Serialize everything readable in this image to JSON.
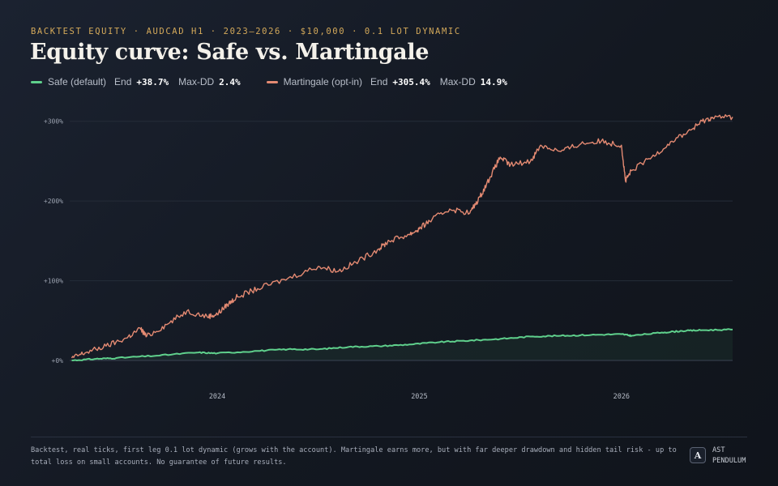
{
  "header": {
    "kicker": "BACKTEST EQUITY · AUDCAD H1 · 2023–2026 · $10,000 · 0.1 LOT DYNAMIC",
    "title": "Equity curve: Safe vs. Martingale"
  },
  "legend": {
    "safe": {
      "name": "Safe (default)",
      "end_label": "End",
      "end_value": "+38.7%",
      "dd_label": "Max-DD",
      "dd_value": "2.4%"
    },
    "martingale": {
      "name": "Martingale (opt-in)",
      "end_label": "End",
      "end_value": "+305.4%",
      "dd_label": "Max-DD",
      "dd_value": "14.9%"
    }
  },
  "colors": {
    "safe": "#5fd08c",
    "martingale": "#e48a72",
    "grid": "#252c38"
  },
  "chart_data": {
    "type": "line",
    "title": "Equity curve: Safe vs. Martingale",
    "ylabel": "",
    "xlabel": "",
    "ylim": [
      0,
      320
    ],
    "xlim": [
      2023.27,
      2026.55
    ],
    "y_ticks": [
      {
        "value": 0,
        "label": "+0%"
      },
      {
        "value": 100,
        "label": "+100%"
      },
      {
        "value": 200,
        "label": "+200%"
      },
      {
        "value": 300,
        "label": "+300%"
      }
    ],
    "x_ticks": [
      {
        "value": 2024,
        "label": "2024"
      },
      {
        "value": 2025,
        "label": "2025"
      },
      {
        "value": 2026,
        "label": "2026"
      }
    ],
    "grid": true,
    "legend_position": "top-left",
    "series": [
      {
        "name": "Safe (default)",
        "x": [
          2023.28,
          2023.4,
          2023.5,
          2023.7,
          2023.9,
          2024.0,
          2024.2,
          2024.35,
          2024.5,
          2024.65,
          2024.8,
          2024.95,
          2025.1,
          2025.25,
          2025.4,
          2025.55,
          2025.7,
          2025.85,
          2026.0,
          2026.05,
          2026.2,
          2026.3,
          2026.4,
          2026.55
        ],
        "values": [
          0,
          2,
          3,
          6,
          10,
          9,
          12,
          14,
          14,
          17,
          18,
          20,
          23,
          25,
          27,
          30,
          31,
          32,
          33,
          31,
          35,
          37,
          38,
          38.7
        ]
      },
      {
        "name": "Martingale (opt-in)",
        "x": [
          2023.28,
          2023.35,
          2023.45,
          2023.55,
          2023.62,
          2023.65,
          2023.75,
          2023.85,
          2023.95,
          2024.0,
          2024.05,
          2024.1,
          2024.2,
          2024.35,
          2024.5,
          2024.6,
          2024.7,
          2024.8,
          2024.85,
          2024.95,
          2025.0,
          2025.05,
          2025.15,
          2025.25,
          2025.3,
          2025.35,
          2025.4,
          2025.45,
          2025.55,
          2025.6,
          2025.7,
          2025.8,
          2025.9,
          2026.0,
          2026.02,
          2026.05,
          2026.15,
          2026.25,
          2026.35,
          2026.4,
          2026.45,
          2026.55
        ],
        "values": [
          3,
          10,
          18,
          28,
          40,
          30,
          45,
          62,
          55,
          58,
          70,
          80,
          90,
          103,
          118,
          112,
          125,
          140,
          150,
          158,
          165,
          175,
          190,
          185,
          205,
          230,
          255,
          245,
          250,
          270,
          262,
          272,
          275,
          270,
          225,
          238,
          255,
          275,
          290,
          300,
          305,
          305.4
        ]
      }
    ]
  },
  "footer": {
    "note": "Backtest, real ticks, first leg 0.1 lot dynamic (grows with the account). Martingale earns more, but with far deeper drawdown and hidden tail risk - up to total loss on small accounts. No guarantee of future results.",
    "brand_logo": "A",
    "brand_line1": "AST",
    "brand_line2": "PENDULUM"
  }
}
